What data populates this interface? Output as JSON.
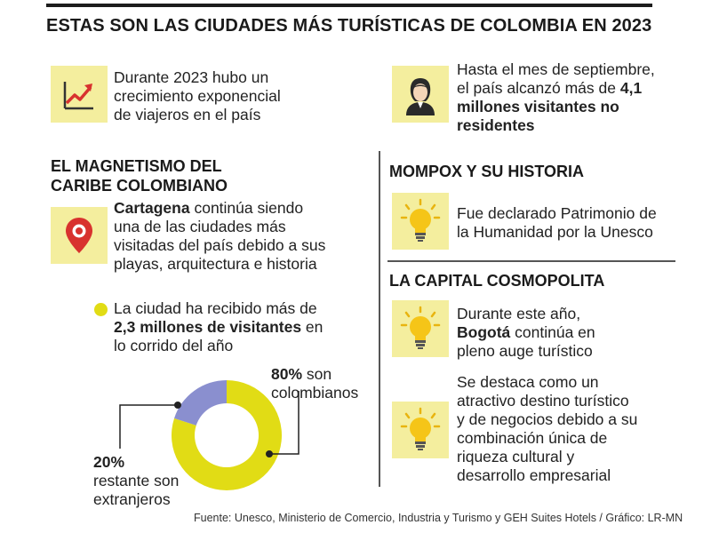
{
  "title": "ESTAS SON LAS CIUDADES MÁS TURÍSTICAS DE COLOMBIA EN 2023",
  "intro": {
    "growth": [
      "Durante 2023 hubo un",
      "crecimiento exponencial",
      "de viajeros en el país"
    ],
    "visitors": {
      "line1": "Hasta el mes de septiembre,",
      "line2_pre": "el país alcanzó más de ",
      "line2_bold": "4,1",
      "line3_bold": "millones visitantes no",
      "line4_bold": "residentes"
    }
  },
  "caribe": {
    "heading_line1": "EL MAGNETISMO DEL",
    "heading_line2": "CARIBE COLOMBIANO",
    "text_bold": "Cartagena",
    "text_line1_rest": " continúa siendo",
    "text_line2": "una de las ciudades más",
    "text_line3": "visitadas del país debido a sus",
    "text_line4": "playas, arquitectura e historia",
    "visits_line1": "La ciudad ha recibido más de",
    "visits_line2_bold": "2,3 millones de visitantes",
    "visits_line2_rest": " en",
    "visits_line3": "lo corrido del año"
  },
  "mompox": {
    "heading": "MOMPOX Y SU HISTORIA",
    "text": [
      "Fue declarado Patrimonio de",
      "la Humanidad por la Unesco"
    ]
  },
  "capital": {
    "heading": "LA CAPITAL COSMOPOLITA",
    "text1_line1": "Durante este año,",
    "text1_bold": "Bogotá",
    "text1_line2_rest": " continúa en",
    "text1_line3": "pleno auge turístico",
    "text2": [
      "Se destaca como un",
      "atractivo destino turístico",
      "y de negocios debido a su",
      "combinación única de",
      "riqueza cultural y",
      "desarrollo empresarial"
    ]
  },
  "chart_data": {
    "type": "pie",
    "categories": [
      "colombianos",
      "extranjeros"
    ],
    "values": [
      80,
      20
    ],
    "colors": [
      "#e1dc15",
      "#8a8fcf"
    ],
    "labels": [
      {
        "value": "80%",
        "text": " son",
        "text2": "colombianos"
      },
      {
        "value": "20%",
        "text": "restante son",
        "text2": "extranjeros"
      }
    ]
  },
  "icons": [
    "chart-growth-icon",
    "person-icon",
    "location-pin-icon",
    "lightbulb-icon"
  ],
  "source": "Fuente: Unesco, Ministerio de Comercio, Industria y Turismo y GEH Suites Hotels  / Gráfico: LR-MN"
}
